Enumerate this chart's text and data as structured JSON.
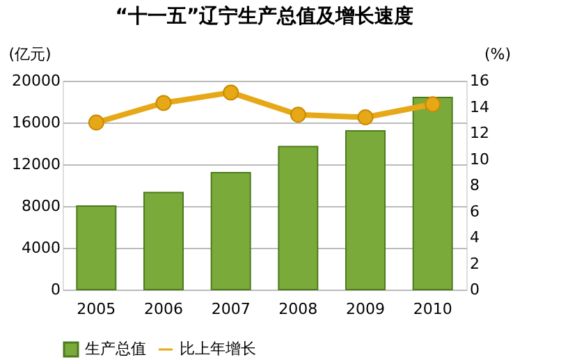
{
  "chart_data": {
    "type": "bar",
    "title": "“十一五”辽宁生产总值及增长速度",
    "ylabel": "(亿元)",
    "y2label": "(%)",
    "categories": [
      "2005",
      "2006",
      "2007",
      "2008",
      "2009",
      "2010"
    ],
    "series": [
      {
        "name": "生产总值",
        "color": "#7aab3a",
        "values": [
          8000,
          9300,
          11200,
          13700,
          15200,
          18400
        ]
      },
      {
        "name": "比上年增长",
        "type": "line",
        "axis": "y2",
        "color": "#e6a817",
        "values": [
          12.8,
          14.3,
          15.1,
          13.4,
          13.2,
          14.2
        ]
      }
    ],
    "ylim": [
      0,
      20000
    ],
    "yticks": [
      0,
      4000,
      8000,
      12000,
      16000,
      20000
    ],
    "y2lim": [
      0,
      16
    ],
    "y2ticks": [
      0,
      2,
      4,
      6,
      8,
      10,
      12,
      14,
      16
    ],
    "grid": "y",
    "legend": "bottom",
    "marker": "circle",
    "line_style": "solid"
  }
}
